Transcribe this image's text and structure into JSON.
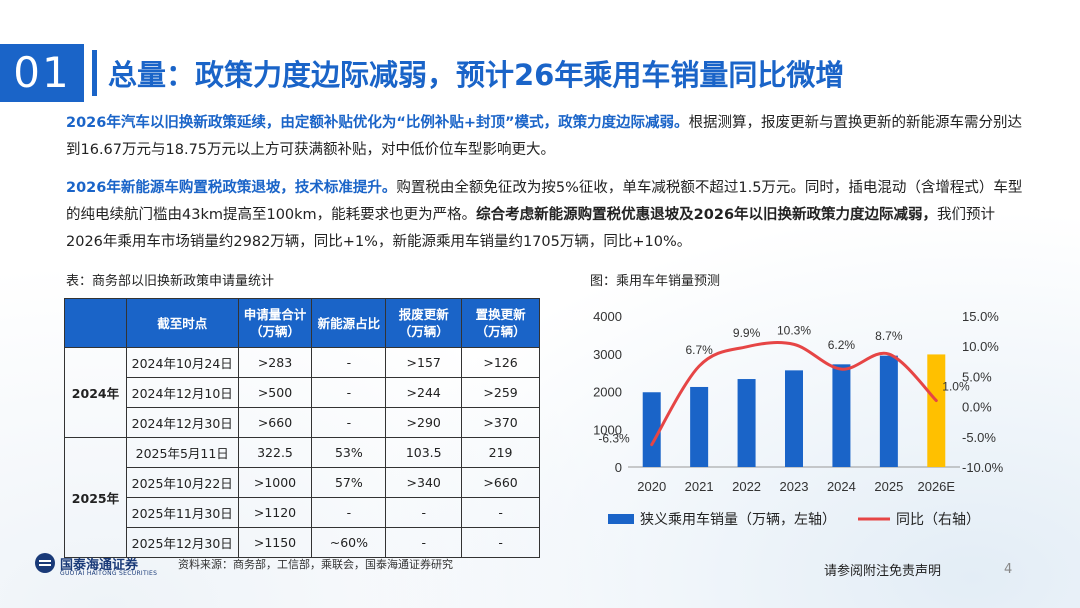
{
  "section": {
    "number": "01",
    "title": "总量：政策力度边际减弱，预计26年乘用车销量同比微增"
  },
  "para1": {
    "highlight": "2026年汽车以旧换新政策延续，由定额补贴优化为“比例补贴+封顶”模式，政策力度边际减弱。",
    "text": "根据测算，报废更新与置换更新的新能源车需分别达到16.67万元与18.75万元以上方可获满额补贴，对中低价位车型影响更大。"
  },
  "para2": {
    "highlight": "2026年新能源车购置税政策退坡，技术标准提升。",
    "text": "购置税由全额免征改为按5%征收，单车减税额不超过1.5万元。同时，插电混动（含增程式）车型的纯电续航门槛由43km提高至100km，能耗要求也更为严格。",
    "bold": "综合考虑新能源购置税优惠退坡及2026年以旧换新政策力度边际减弱，",
    "text2": "我们预计2026年乘用车市场销量约2982万辆，同比+1%，新能源乘用车销量约1705万辆，同比+10%。"
  },
  "table": {
    "caption": "表：商务部以旧换新政策申请量统计",
    "headers": [
      "",
      "截至时点",
      "申请量合计（万辆）",
      "新能源占比",
      "报废更新（万辆）",
      "置换更新（万辆）"
    ],
    "groups": [
      {
        "year": "2024年",
        "rows": [
          [
            "2024年10月24日",
            ">283",
            "-",
            ">157",
            ">126"
          ],
          [
            "2024年12月10日",
            ">500",
            "-",
            ">244",
            ">259"
          ],
          [
            "2024年12月30日",
            ">660",
            "-",
            ">290",
            ">370"
          ]
        ]
      },
      {
        "year": "2025年",
        "rows": [
          [
            "2025年5月11日",
            "322.5",
            "53%",
            "103.5",
            "219"
          ],
          [
            "2025年10月22日",
            ">1000",
            "57%",
            ">340",
            ">660"
          ],
          [
            "2025年11月30日",
            ">1120",
            "-",
            "-",
            "-"
          ],
          [
            "2025年12月30日",
            ">1150",
            "~60%",
            "-",
            "-"
          ]
        ]
      }
    ]
  },
  "chart_data": {
    "type": "bar",
    "title": "图：乘用车年销量预测",
    "categories": [
      "2020",
      "2021",
      "2022",
      "2023",
      "2024",
      "2025",
      "2026E"
    ],
    "series": [
      {
        "name": "狭义乘用车销量（万辆，左轴）",
        "type": "bar",
        "axis": "left",
        "values": [
          1980,
          2120,
          2330,
          2560,
          2720,
          2950,
          2982
        ],
        "colors": [
          "#1a64c8",
          "#1a64c8",
          "#1a64c8",
          "#1a64c8",
          "#1a64c8",
          "#1a64c8",
          "#ffc000"
        ]
      },
      {
        "name": "同比（右轴）",
        "type": "line",
        "axis": "right",
        "color": "#e64545",
        "values": [
          -6.3,
          6.7,
          9.9,
          10.3,
          6.2,
          8.7,
          1.0
        ],
        "labels": [
          "-6.3%",
          "6.7%",
          "9.9%",
          "10.3%",
          "6.2%",
          "8.7%",
          "1.0%"
        ]
      }
    ],
    "left_axis": {
      "min": 0,
      "max": 4000,
      "ticks": [
        0,
        1000,
        2000,
        3000,
        4000
      ]
    },
    "right_axis": {
      "min": -10,
      "max": 15,
      "ticks": [
        "-10.0%",
        "-5.0%",
        "0.0%",
        "5.0%",
        "10.0%",
        "15.0%"
      ]
    },
    "legend_position": "bottom"
  },
  "footer": {
    "brand": "国泰海通证券",
    "brand_en": "GUOTAI HAITONG SECURITIES",
    "source": "资料来源：商务部，工信部，乘联会，国泰海通证券研究",
    "disclaimer": "请参阅附注免责声明",
    "page": "4"
  },
  "colors": {
    "accent": "#1a64c8",
    "highlight_bar": "#ffc000",
    "line": "#e64545"
  }
}
